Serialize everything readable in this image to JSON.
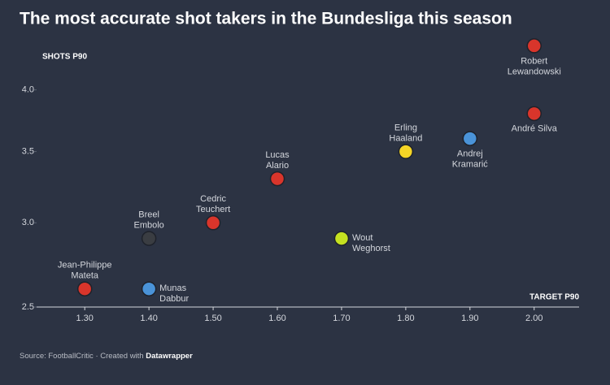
{
  "chart_data": {
    "type": "scatter",
    "title": "The most accurate shot takers in the Bundesliga this season",
    "x_label": "TARGET P90",
    "y_label": "SHOTS P90",
    "source": "Source: FootballCritic · Created with",
    "credit": "Datawrapper",
    "log_y": true,
    "xlim": [
      1.225,
      2.07
    ],
    "ylim": [
      2.5,
      4.45
    ],
    "xticks": [
      {
        "value": 1.3,
        "label": "1.30"
      },
      {
        "value": 1.4,
        "label": "1.40"
      },
      {
        "value": 1.5,
        "label": "1.50"
      },
      {
        "value": 1.6,
        "label": "1.60"
      },
      {
        "value": 1.7,
        "label": "1.70"
      },
      {
        "value": 1.8,
        "label": "1.80"
      },
      {
        "value": 1.9,
        "label": "1.90"
      },
      {
        "value": 2.0,
        "label": "2.00"
      }
    ],
    "yticks": [
      {
        "value": 2.5,
        "label": "2.5"
      },
      {
        "value": 3,
        "label": "3.0"
      },
      3.5,
      {
        "value": 4,
        "label": "4.0"
      }
    ],
    "labels": [
      [
        "Robert",
        "Lewandowski"
      ],
      [
        "André Silva"
      ],
      [
        "Andrej",
        "Kramarić"
      ],
      [
        "Erling",
        "Haaland"
      ],
      [
        "Lucas",
        "Alario"
      ],
      [
        "Cedric",
        "Teuchert"
      ],
      [
        "Breel",
        "Embolo"
      ],
      [
        "Wout",
        "Weghorst"
      ],
      [
        "Jean-Philippe",
        "Mateta"
      ],
      [
        "Munas",
        "Dabbur"
      ]
    ],
    "x": [
      2.0,
      2.0,
      1.9,
      1.8,
      1.6,
      1.5,
      1.4,
      1.7,
      1.3,
      1.4
    ],
    "y": [
      4.4,
      3.8,
      3.6,
      3.5,
      3.3,
      3.0,
      2.9,
      2.9,
      2.6,
      2.6
    ],
    "colors": [
      "#d9352b",
      "#d9352b",
      "#4a93d8",
      "#f5d526",
      "#d9352b",
      "#d9352b",
      "#3a3d42",
      "#c5e120",
      "#d9352b",
      "#4a93d8"
    ]
  }
}
